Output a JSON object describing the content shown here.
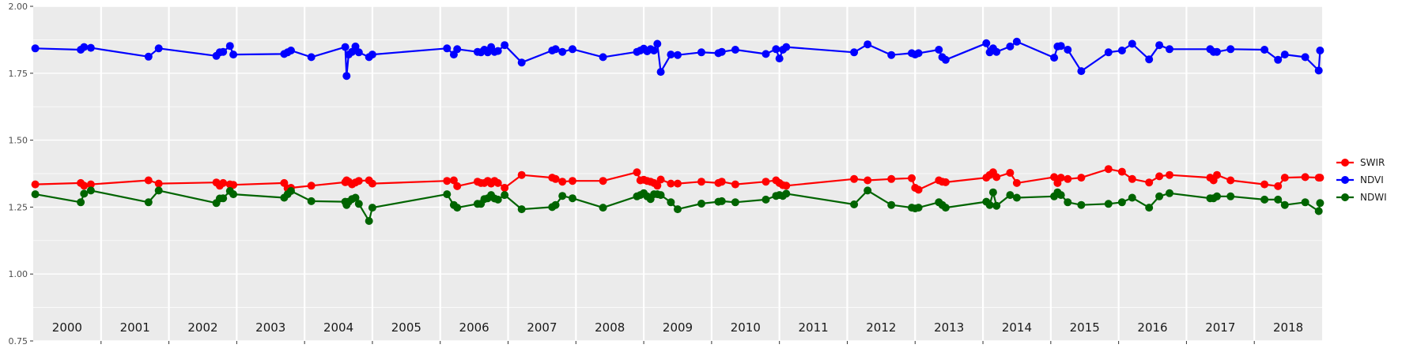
{
  "chart_data": {
    "type": "line",
    "title": "",
    "xlabel": "",
    "ylabel": "",
    "ylim": [
      0.75,
      2.0
    ],
    "xlim": [
      2000.0,
      2019.0
    ],
    "y_ticks": [
      "0.75",
      "1.00",
      "1.25",
      "1.50",
      "1.75",
      "2.00"
    ],
    "y_tick_values": [
      0.75,
      1.0,
      1.25,
      1.5,
      1.75,
      2.0
    ],
    "year_labels": [
      "2000",
      "2001",
      "2002",
      "2003",
      "2004",
      "2005",
      "2006",
      "2007",
      "2008",
      "2009",
      "2010",
      "2011",
      "2012",
      "2013",
      "2014",
      "2015",
      "2016",
      "2017",
      "2018"
    ],
    "grid": true,
    "legend_position": "right",
    "x": [
      2000.03,
      2000.7,
      2000.75,
      2000.85,
      2001.7,
      2001.85,
      2002.7,
      2002.75,
      2002.8,
      2002.9,
      2002.95,
      2003.7,
      2003.75,
      2003.8,
      2004.1,
      2004.6,
      2004.62,
      2004.65,
      2004.7,
      2004.75,
      2004.8,
      2004.95,
      2005.0,
      2006.1,
      2006.2,
      2006.25,
      2006.55,
      2006.6,
      2006.65,
      2006.7,
      2006.75,
      2006.8,
      2006.85,
      2006.95,
      2007.2,
      2007.65,
      2007.7,
      2007.8,
      2007.95,
      2008.4,
      2008.9,
      2008.95,
      2009.0,
      2009.05,
      2009.1,
      2009.15,
      2009.2,
      2009.25,
      2009.4,
      2009.5,
      2009.85,
      2010.1,
      2010.15,
      2010.35,
      2010.8,
      2010.95,
      2011.0,
      2011.05,
      2011.1,
      2012.1,
      2012.3,
      2012.65,
      2012.95,
      2013.0,
      2013.05,
      2013.35,
      2013.4,
      2013.45,
      2014.05,
      2014.1,
      2014.15,
      2014.2,
      2014.4,
      2014.5,
      2015.05,
      2015.1,
      2015.15,
      2015.25,
      2015.45,
      2015.85,
      2016.05,
      2016.2,
      2016.45,
      2016.6,
      2016.75,
      2017.35,
      2017.4,
      2017.45,
      2017.65,
      2018.15,
      2018.35,
      2018.45,
      2018.75,
      2018.95,
      2018.97
    ],
    "series": [
      {
        "name": "SWIR",
        "color": "#ff0000",
        "values": [
          1.335,
          1.34,
          1.33,
          1.335,
          1.35,
          1.338,
          1.342,
          1.33,
          1.34,
          1.335,
          1.333,
          1.34,
          1.32,
          1.322,
          1.33,
          1.343,
          1.35,
          1.345,
          1.335,
          1.342,
          1.348,
          1.35,
          1.338,
          1.348,
          1.35,
          1.328,
          1.345,
          1.34,
          1.34,
          1.348,
          1.338,
          1.348,
          1.34,
          1.322,
          1.37,
          1.36,
          1.355,
          1.345,
          1.348,
          1.348,
          1.38,
          1.35,
          1.352,
          1.348,
          1.345,
          1.34,
          1.33,
          1.353,
          1.338,
          1.338,
          1.345,
          1.34,
          1.345,
          1.335,
          1.345,
          1.35,
          1.34,
          1.332,
          1.33,
          1.355,
          1.35,
          1.355,
          1.358,
          1.322,
          1.315,
          1.35,
          1.345,
          1.343,
          1.36,
          1.37,
          1.38,
          1.362,
          1.378,
          1.34,
          1.362,
          1.34,
          1.36,
          1.355,
          1.36,
          1.392,
          1.382,
          1.355,
          1.342,
          1.365,
          1.37,
          1.36,
          1.35,
          1.37,
          1.35,
          1.335,
          1.328,
          1.36,
          1.362,
          1.36,
          1.36
        ]
      },
      {
        "name": "NDVI",
        "color": "#0000ff",
        "values": [
          1.843,
          1.838,
          1.848,
          1.845,
          1.812,
          1.843,
          1.815,
          1.828,
          1.83,
          1.852,
          1.82,
          1.822,
          1.828,
          1.835,
          1.81,
          1.848,
          1.74,
          1.82,
          1.83,
          1.85,
          1.828,
          1.81,
          1.82,
          1.843,
          1.82,
          1.84,
          1.83,
          1.828,
          1.838,
          1.828,
          1.848,
          1.83,
          1.833,
          1.855,
          1.79,
          1.835,
          1.84,
          1.83,
          1.84,
          1.81,
          1.83,
          1.835,
          1.842,
          1.832,
          1.84,
          1.835,
          1.86,
          1.755,
          1.82,
          1.818,
          1.828,
          1.825,
          1.83,
          1.838,
          1.822,
          1.84,
          1.805,
          1.838,
          1.848,
          1.828,
          1.858,
          1.818,
          1.825,
          1.82,
          1.825,
          1.838,
          1.81,
          1.8,
          1.862,
          1.828,
          1.843,
          1.83,
          1.85,
          1.868,
          1.808,
          1.85,
          1.852,
          1.838,
          1.758,
          1.828,
          1.835,
          1.86,
          1.802,
          1.855,
          1.84,
          1.84,
          1.83,
          1.83,
          1.84,
          1.838,
          1.8,
          1.82,
          1.81,
          1.76,
          1.835
        ]
      },
      {
        "name": "NDWI",
        "color": "#006400",
        "values": [
          1.298,
          1.268,
          1.3,
          1.312,
          1.268,
          1.312,
          1.265,
          1.282,
          1.283,
          1.31,
          1.298,
          1.285,
          1.298,
          1.31,
          1.272,
          1.27,
          1.258,
          1.27,
          1.28,
          1.285,
          1.262,
          1.198,
          1.248,
          1.298,
          1.258,
          1.248,
          1.262,
          1.262,
          1.28,
          1.283,
          1.295,
          1.282,
          1.278,
          1.295,
          1.242,
          1.25,
          1.258,
          1.292,
          1.283,
          1.248,
          1.29,
          1.295,
          1.302,
          1.29,
          1.28,
          1.298,
          1.298,
          1.295,
          1.268,
          1.242,
          1.263,
          1.27,
          1.272,
          1.268,
          1.278,
          1.292,
          1.295,
          1.292,
          1.3,
          1.26,
          1.312,
          1.258,
          1.248,
          1.245,
          1.248,
          1.268,
          1.258,
          1.248,
          1.27,
          1.258,
          1.305,
          1.255,
          1.295,
          1.285,
          1.29,
          1.305,
          1.295,
          1.268,
          1.258,
          1.262,
          1.268,
          1.285,
          1.248,
          1.29,
          1.302,
          1.283,
          1.283,
          1.29,
          1.29,
          1.278,
          1.278,
          1.258,
          1.268,
          1.235,
          1.265
        ]
      }
    ]
  }
}
